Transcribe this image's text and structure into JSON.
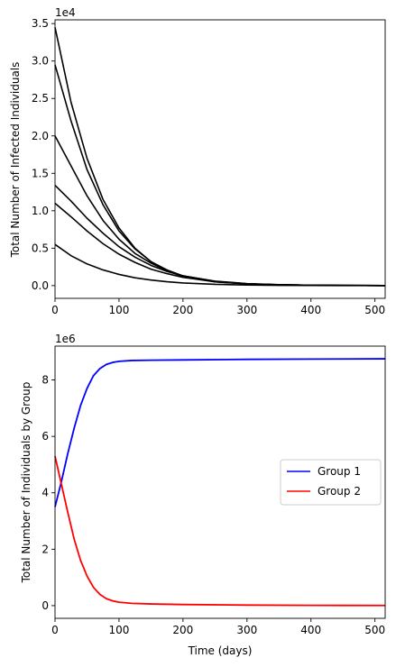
{
  "chart_data": [
    {
      "type": "line",
      "ylabel": "Total Number of Infected Individuals",
      "xlabel": "",
      "offset_text": "1e4",
      "xlim": [
        0,
        516
      ],
      "ylim": [
        -1700,
        35500
      ],
      "xticks": [
        0,
        100,
        200,
        300,
        400,
        500
      ],
      "xtick_labels": [
        "0",
        "100",
        "200",
        "300",
        "400",
        "500"
      ],
      "yticks": [
        0,
        5000,
        10000,
        15000,
        20000,
        25000,
        30000,
        35000
      ],
      "ytick_labels": [
        "0.0",
        "0.5",
        "1.0",
        "1.5",
        "2.0",
        "2.5",
        "3.0",
        "3.5"
      ],
      "grid": false,
      "series_color": "#000000",
      "series": [
        {
          "x": [
            0,
            25,
            50,
            75,
            100,
            125,
            150,
            175,
            200,
            250,
            300,
            350,
            400,
            450,
            516
          ],
          "values": [
            34500,
            24500,
            17000,
            11500,
            7700,
            5000,
            3200,
            2000,
            1200,
            500,
            220,
            100,
            60,
            30,
            10
          ]
        },
        {
          "x": [
            0,
            25,
            50,
            75,
            100,
            125,
            150,
            175,
            200,
            250,
            300,
            350,
            400,
            450,
            516
          ],
          "values": [
            29500,
            22000,
            15500,
            10800,
            7300,
            4900,
            3200,
            2100,
            1300,
            560,
            240,
            110,
            60,
            30,
            10
          ]
        },
        {
          "x": [
            0,
            25,
            50,
            75,
            100,
            125,
            150,
            175,
            200,
            250,
            300,
            350,
            400,
            450,
            516
          ],
          "values": [
            20000,
            16000,
            12000,
            8700,
            6200,
            4300,
            3000,
            2000,
            1300,
            570,
            250,
            120,
            60,
            30,
            10
          ]
        },
        {
          "x": [
            0,
            25,
            50,
            75,
            100,
            125,
            150,
            175,
            200,
            250,
            300,
            350,
            400,
            450,
            516
          ],
          "values": [
            13400,
            11300,
            9000,
            7000,
            5200,
            3800,
            2700,
            1900,
            1300,
            600,
            270,
            130,
            60,
            30,
            10
          ]
        },
        {
          "x": [
            0,
            25,
            50,
            75,
            100,
            125,
            150,
            175,
            200,
            250,
            300,
            350,
            400,
            450,
            516
          ],
          "values": [
            11000,
            9200,
            7300,
            5600,
            4200,
            3100,
            2200,
            1600,
            1100,
            520,
            240,
            110,
            60,
            30,
            10
          ]
        },
        {
          "x": [
            0,
            25,
            50,
            75,
            100,
            125,
            150,
            175,
            200,
            250,
            300,
            350,
            400,
            450,
            516
          ],
          "values": [
            5500,
            4000,
            2900,
            2100,
            1500,
            1050,
            750,
            520,
            360,
            170,
            80,
            40,
            20,
            10,
            5
          ]
        }
      ]
    },
    {
      "type": "line",
      "ylabel": "Total Number of Individuals by Group",
      "xlabel": "Time (days)",
      "offset_text": "1e6",
      "xlim": [
        0,
        516
      ],
      "ylim": [
        -450000,
        9200000
      ],
      "xticks": [
        0,
        100,
        200,
        300,
        400,
        500
      ],
      "xtick_labels": [
        "0",
        "100",
        "200",
        "300",
        "400",
        "500"
      ],
      "yticks": [
        0,
        2000000,
        4000000,
        6000000,
        8000000
      ],
      "ytick_labels": [
        "0",
        "2",
        "4",
        "6",
        "8"
      ],
      "grid": false,
      "legend": "center-right",
      "series": [
        {
          "name": "Group 1",
          "color": "#0000ff",
          "x": [
            0,
            10,
            20,
            30,
            40,
            50,
            60,
            70,
            80,
            90,
            100,
            120,
            150,
            200,
            300,
            400,
            516
          ],
          "values": [
            3500000,
            4400000,
            5400000,
            6300000,
            7100000,
            7700000,
            8150000,
            8400000,
            8550000,
            8620000,
            8660000,
            8690000,
            8700000,
            8710000,
            8730000,
            8740000,
            8750000
          ]
        },
        {
          "name": "Group 2",
          "color": "#ff0000",
          "x": [
            0,
            10,
            20,
            30,
            40,
            50,
            60,
            70,
            80,
            90,
            100,
            120,
            150,
            200,
            300,
            400,
            516
          ],
          "values": [
            5300000,
            4300000,
            3300000,
            2350000,
            1600000,
            1050000,
            650000,
            400000,
            250000,
            170000,
            120000,
            80000,
            60000,
            40000,
            20000,
            10000,
            5000
          ]
        }
      ]
    }
  ]
}
